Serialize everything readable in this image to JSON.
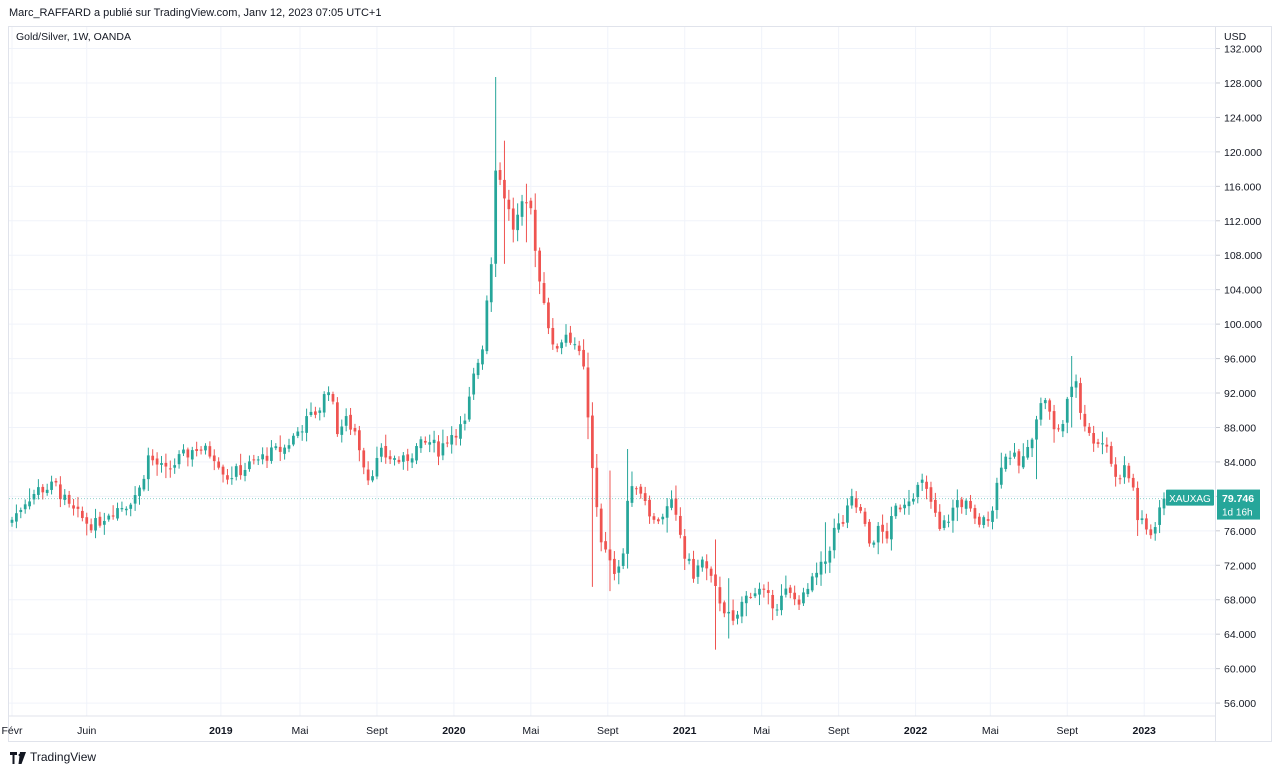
{
  "header": {
    "published_line": "Marc_RAFFARD a publié sur TradingView.com, Janv 12, 2023 07:05 UTC+1",
    "legend": "Gold/Silver, 1W, OANDA",
    "currency": "USD"
  },
  "price_label": {
    "symbol": "XAUXAG",
    "last": "79.746",
    "countdown": "1d 16h",
    "color": "#26a69a"
  },
  "footer": {
    "brand": "TradingView"
  },
  "colors": {
    "up": "#26a69a",
    "down": "#ef5350",
    "grid": "#f0f3fa"
  },
  "chart_data": {
    "type": "candlestick",
    "title": "Gold/Silver, 1W, OANDA",
    "ylabel": "USD",
    "ylim": [
      54.5,
      134.5
    ],
    "y_ticks": [
      "56.000",
      "60.000",
      "64.000",
      "68.000",
      "72.000",
      "76.000",
      "80.000",
      "84.000",
      "88.000",
      "92.000",
      "96.000",
      "100.000",
      "104.000",
      "108.000",
      "112.000",
      "116.000",
      "120.000",
      "124.000",
      "128.000",
      "132.000"
    ],
    "x_ticks": [
      {
        "label": "Févr",
        "t": 0.0
      },
      {
        "label": "Juin",
        "t": 17.0
      },
      {
        "label": "2019",
        "t": 47.5
      },
      {
        "label": "Mai",
        "t": 65.5
      },
      {
        "label": "Sept",
        "t": 83.0
      },
      {
        "label": "2020",
        "t": 100.5
      },
      {
        "label": "Mai",
        "t": 118.0
      },
      {
        "label": "Sept",
        "t": 135.5
      },
      {
        "label": "2021",
        "t": 153.0
      },
      {
        "label": "Mai",
        "t": 170.5
      },
      {
        "label": "Sept",
        "t": 188.0
      },
      {
        "label": "2022",
        "t": 205.5
      },
      {
        "label": "Mai",
        "t": 222.5
      },
      {
        "label": "Sept",
        "t": 240.0
      },
      {
        "label": "2023",
        "t": 257.5
      }
    ],
    "last_value": 79.746,
    "anchors": [
      [
        0,
        77.3
      ],
      [
        3,
        79.5
      ],
      [
        6,
        80.8
      ],
      [
        10,
        81.2
      ],
      [
        13,
        78.6
      ],
      [
        17,
        77.0
      ],
      [
        19,
        76.7
      ],
      [
        22,
        78.2
      ],
      [
        26,
        79.1
      ],
      [
        29,
        80.8
      ],
      [
        31,
        84.6
      ],
      [
        35,
        82.8
      ],
      [
        38,
        84.3
      ],
      [
        42,
        85.7
      ],
      [
        46,
        84.8
      ],
      [
        49,
        82.3
      ],
      [
        53,
        83.3
      ],
      [
        58,
        84.8
      ],
      [
        62,
        85.6
      ],
      [
        66,
        88.2
      ],
      [
        70,
        90.3
      ],
      [
        72,
        92.8
      ],
      [
        74,
        87.8
      ],
      [
        76,
        88.7
      ],
      [
        78,
        87.6
      ],
      [
        80,
        84.0
      ],
      [
        81,
        82.2
      ],
      [
        84,
        84.9
      ],
      [
        87,
        84.3
      ],
      [
        89,
        84.0
      ],
      [
        92,
        85.6
      ],
      [
        95,
        86.3
      ],
      [
        97,
        85.4
      ],
      [
        100,
        87.3
      ],
      [
        103,
        88.3
      ],
      [
        105,
        93.8
      ],
      [
        107,
        97.6
      ],
      [
        108,
        103.0
      ],
      [
        109,
        107.5
      ],
      [
        110,
        118.5
      ],
      [
        112,
        115.0
      ],
      [
        114,
        111.2
      ],
      [
        116,
        113.5
      ],
      [
        118,
        113.2
      ],
      [
        120,
        105.0
      ],
      [
        121,
        103.0
      ],
      [
        123,
        97.0
      ],
      [
        124,
        97.5
      ],
      [
        126,
        99.0
      ],
      [
        128,
        97.8
      ],
      [
        130,
        94.6
      ],
      [
        132,
        83.0
      ],
      [
        134,
        75.0
      ],
      [
        136,
        72.0
      ],
      [
        137,
        71.5
      ],
      [
        139,
        73.5
      ],
      [
        140,
        79.5
      ],
      [
        142,
        81.5
      ],
      [
        144,
        79.8
      ],
      [
        146,
        77.0
      ],
      [
        148,
        78.0
      ],
      [
        150,
        79.0
      ],
      [
        152,
        75.5
      ],
      [
        153,
        73.0
      ],
      [
        155,
        71.0
      ],
      [
        157,
        72.5
      ],
      [
        160,
        69.0
      ],
      [
        162,
        67.0
      ],
      [
        164,
        65.0
      ],
      [
        166,
        67.5
      ],
      [
        168,
        69.0
      ],
      [
        170,
        69.0
      ],
      [
        172,
        68.0
      ],
      [
        174,
        67.5
      ],
      [
        176,
        68.8
      ],
      [
        178,
        68.0
      ],
      [
        180,
        68.2
      ],
      [
        182,
        70.0
      ],
      [
        185,
        72.5
      ],
      [
        187,
        76.0
      ],
      [
        189,
        77.0
      ],
      [
        191,
        79.5
      ],
      [
        193,
        78.0
      ],
      [
        195,
        74.5
      ],
      [
        197,
        76.0
      ],
      [
        199,
        75.5
      ],
      [
        201,
        78.5
      ],
      [
        203,
        79.5
      ],
      [
        205,
        80.5
      ],
      [
        207,
        81.5
      ],
      [
        209,
        79.3
      ],
      [
        211,
        76.0
      ],
      [
        213,
        77.5
      ],
      [
        215,
        79.5
      ],
      [
        217,
        79.0
      ],
      [
        219,
        77.0
      ],
      [
        221,
        77.0
      ],
      [
        223,
        78.8
      ],
      [
        225,
        84.0
      ],
      [
        227,
        85.0
      ],
      [
        229,
        83.6
      ],
      [
        231,
        85.2
      ],
      [
        233,
        89.5
      ],
      [
        235,
        91.5
      ],
      [
        237,
        87.5
      ],
      [
        239,
        88.5
      ],
      [
        241,
        93.0
      ],
      [
        242,
        93.5
      ],
      [
        243,
        90.0
      ],
      [
        245,
        87.0
      ],
      [
        247,
        86.5
      ],
      [
        249,
        86.0
      ],
      [
        251,
        82.0
      ],
      [
        253,
        83.3
      ],
      [
        255,
        81.0
      ],
      [
        256,
        77.5
      ],
      [
        258,
        76.0
      ],
      [
        259,
        75.7
      ],
      [
        260,
        77.0
      ],
      [
        261,
        78.8
      ],
      [
        262,
        79.746
      ]
    ]
  }
}
